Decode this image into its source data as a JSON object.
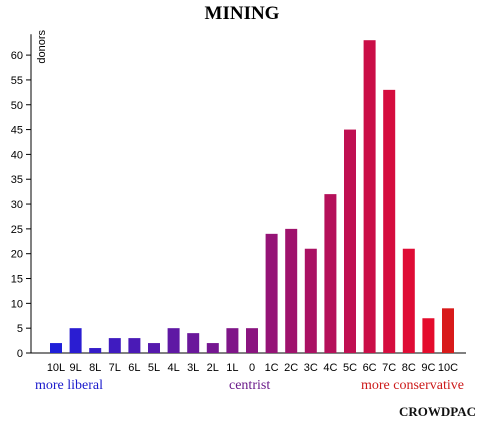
{
  "chart_data": {
    "type": "bar",
    "title": "MINING",
    "ylabel": "donors",
    "xlabel": "",
    "ylim": [
      0,
      63
    ],
    "yticks": [
      0,
      5,
      10,
      15,
      20,
      25,
      30,
      35,
      40,
      45,
      50,
      55,
      60
    ],
    "categories": [
      "10L",
      "9L",
      "8L",
      "7L",
      "6L",
      "5L",
      "4L",
      "3L",
      "2L",
      "1L",
      "0",
      "1C",
      "2C",
      "3C",
      "4C",
      "5C",
      "6C",
      "7C",
      "8C",
      "9C",
      "10C"
    ],
    "values": [
      2,
      5,
      1,
      3,
      3,
      2,
      5,
      4,
      2,
      5,
      5,
      24,
      25,
      21,
      32,
      45,
      63,
      53,
      21,
      7,
      9
    ],
    "colors": [
      "#1f1fd8",
      "#2a1dd2",
      "#351cc9",
      "#3f1bc0",
      "#4a1ab6",
      "#5519ad",
      "#5f18a4",
      "#6a179b",
      "#751691",
      "#7f1588",
      "#8a147f",
      "#951376",
      "#9f126c",
      "#aa1163",
      "#b5105a",
      "#bf0f51",
      "#ca0e47",
      "#d50d3e",
      "#df0c35",
      "#e40c2c",
      "#d81a1a"
    ],
    "spectrum_labels": {
      "left": "more liberal",
      "center": "centrist",
      "right": "more conservative"
    },
    "spectrum_colors": {
      "left": "#1a1acc",
      "center": "#6a1a8a",
      "right": "#cc1a1a"
    },
    "brand": "CROWDPAC"
  }
}
